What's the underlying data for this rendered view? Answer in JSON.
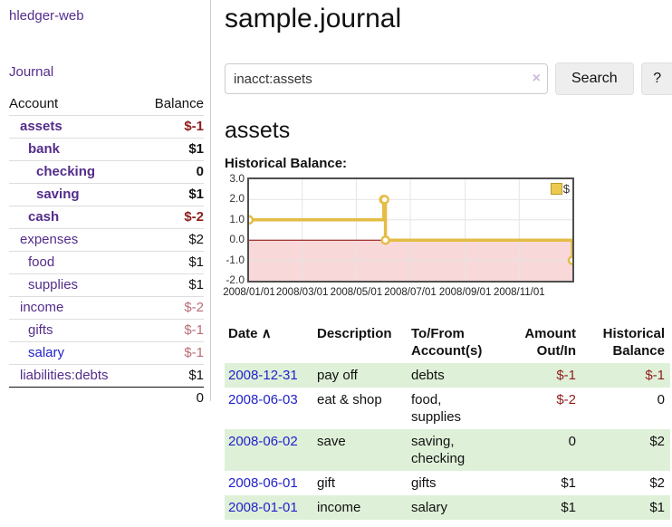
{
  "sidebar": {
    "brand": "hledger-web",
    "journal_link": "Journal",
    "accounts": {
      "headers": {
        "account": "Account",
        "balance": "Balance"
      },
      "rows": [
        {
          "name": "assets",
          "balance": "$-1"
        },
        {
          "name": "bank",
          "balance": "$1"
        },
        {
          "name": "checking",
          "balance": "0"
        },
        {
          "name": "saving",
          "balance": "$1"
        },
        {
          "name": "cash",
          "balance": "$-2"
        },
        {
          "name": "expenses",
          "balance": "$2"
        },
        {
          "name": "food",
          "balance": "$1"
        },
        {
          "name": "supplies",
          "balance": "$1"
        },
        {
          "name": "income",
          "balance": "$-2"
        },
        {
          "name": "gifts",
          "balance": "$-1"
        },
        {
          "name": "salary",
          "balance": "$-1"
        },
        {
          "name": "liabilities:debts",
          "balance": "$1"
        }
      ],
      "total": "0"
    }
  },
  "main": {
    "title": "sample.journal",
    "search": {
      "value": "inacct:assets",
      "clear_icon": "×",
      "search_button": "Search",
      "help_button": "?"
    },
    "section_title": "assets",
    "chart_label": "Historical Balance:"
  },
  "chart_data": {
    "type": "line",
    "subtype": "step",
    "title": "Historical Balance:",
    "x_range": [
      "2008-01-01",
      "2008-12-31"
    ],
    "ylim": [
      -2,
      3
    ],
    "y_ticks": [
      3.0,
      2.0,
      1.0,
      0.0,
      -1.0,
      -2.0
    ],
    "x_ticks": [
      "2008/01/01",
      "2008/03/01",
      "2008/05/01",
      "2008/07/01",
      "2008/09/01",
      "2008/11/01"
    ],
    "legend": {
      "position": "top-right",
      "label": "$"
    },
    "series": [
      {
        "name": "$",
        "color": "#e5bc45",
        "points": [
          [
            "2008-01-01",
            1
          ],
          [
            "2008-06-01",
            2
          ],
          [
            "2008-06-02",
            2
          ],
          [
            "2008-06-03",
            0
          ],
          [
            "2008-12-31",
            -1
          ]
        ]
      }
    ],
    "colors": {
      "negative_region": "#f9d8da",
      "zero_line": "#8b0000",
      "grid": "#e4e4e4",
      "plot_border": "#4f4f4f"
    },
    "grid": true
  },
  "register": {
    "headers": {
      "date": "Date",
      "sort_icon": "∧",
      "description": "Description",
      "account": "To/From Account(s)",
      "amount": "Amount Out/In",
      "balance": "Historical Balance"
    },
    "rows": [
      {
        "date": "2008-12-31",
        "description": "pay off",
        "account": "debts",
        "amount": "$-1",
        "balance": "$-1"
      },
      {
        "date": "2008-06-03",
        "description": "eat & shop",
        "account": "food, supplies",
        "amount": "$-2",
        "balance": "0"
      },
      {
        "date": "2008-06-02",
        "description": "save",
        "account": "saving, checking",
        "amount": "0",
        "balance": "$2"
      },
      {
        "date": "2008-06-01",
        "description": "gift",
        "account": "gifts",
        "amount": "$1",
        "balance": "$2"
      },
      {
        "date": "2008-01-01",
        "description": "income",
        "account": "salary",
        "amount": "$1",
        "balance": "$1"
      }
    ]
  }
}
